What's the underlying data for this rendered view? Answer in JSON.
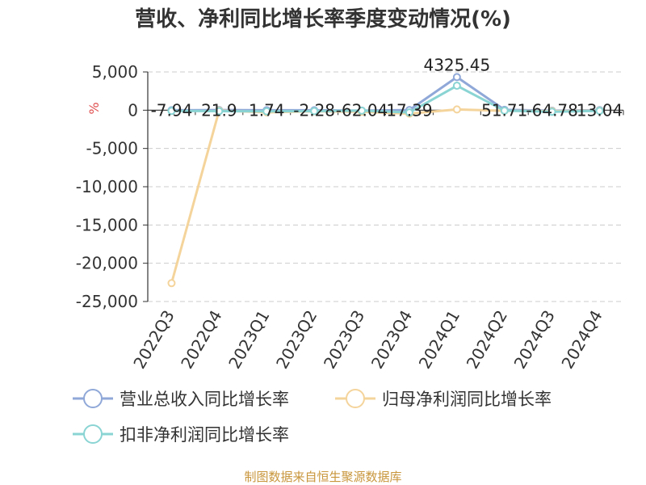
{
  "chart_data": {
    "type": "line",
    "title": "营收、净利同比增长率季度变动情况(%)",
    "ylabel": "%",
    "xlabel": "",
    "categories": [
      "2022Q3",
      "2022Q4",
      "2023Q1",
      "2023Q2",
      "2023Q3",
      "2023Q4",
      "2024Q1",
      "2024Q2",
      "2024Q3",
      "2024Q4"
    ],
    "ylim": [
      -25000,
      5000
    ],
    "yticks": [
      5000,
      0,
      -5000,
      -10000,
      -15000,
      -20000,
      -25000
    ],
    "ytick_labels": [
      "5,000",
      "0",
      "-5,000",
      "-10,000",
      "-15,000",
      "-20,000",
      "-25,000"
    ],
    "grid": true,
    "legend_position": "bottom",
    "series": [
      {
        "name": "营业总收入同比增长率",
        "color": "#8fa8d8",
        "values": [
          -7.94,
          21.9,
          1.74,
          -2.28,
          -62.04,
          17.39,
          4325.45,
          51.71,
          -64.78,
          13.04
        ]
      },
      {
        "name": "归母净利润同比增长率",
        "color": "#f5d49c",
        "values": [
          -22600,
          -50,
          -280,
          -150,
          -200,
          -450,
          100,
          -80,
          -120,
          -60
        ]
      },
      {
        "name": "扣非净利润同比增长率",
        "color": "#8ad4d4",
        "values": [
          -100,
          -120,
          -150,
          -120,
          -60,
          -300,
          3200,
          -60,
          -200,
          -90
        ]
      }
    ],
    "data_labels": [
      {
        "category_index": 0,
        "text": "-7.94"
      },
      {
        "category_index": 1,
        "text": "21.9"
      },
      {
        "category_index": 2,
        "text": "1.74"
      },
      {
        "category_index": 3,
        "text": "-2.28"
      },
      {
        "category_index": 4,
        "text": "-62.04"
      },
      {
        "category_index": 5,
        "text": "17.39"
      },
      {
        "category_index": 6,
        "text": "4325.45"
      },
      {
        "category_index": 7,
        "text": "51.71"
      },
      {
        "category_index": 8,
        "text": "-64.78"
      },
      {
        "category_index": 9,
        "text": "13.04"
      }
    ]
  },
  "footer": {
    "source": "制图数据来自恒生聚源数据库"
  }
}
